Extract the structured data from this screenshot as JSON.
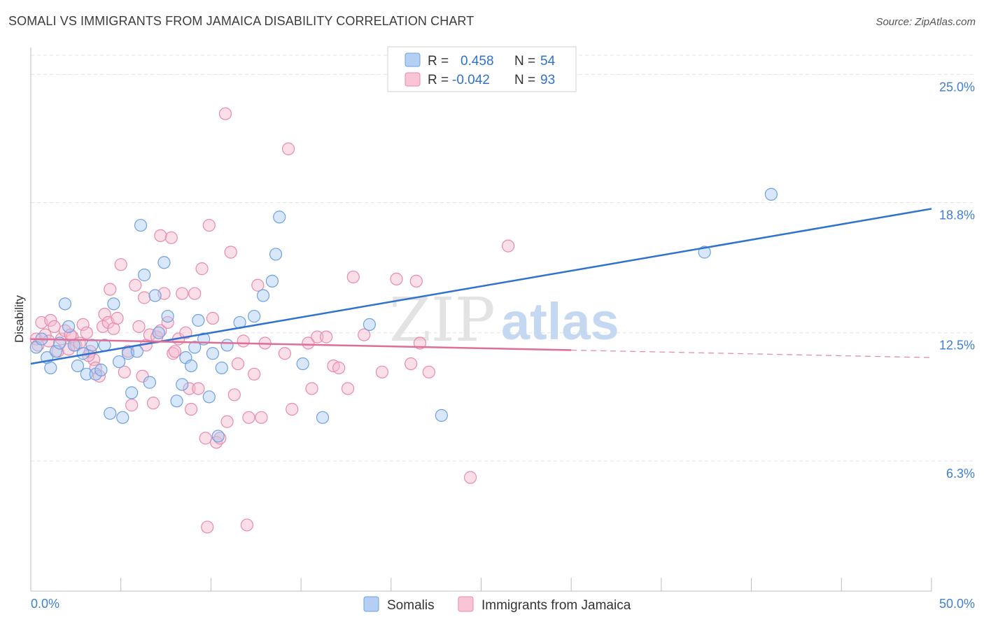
{
  "title": "SOMALI VS IMMIGRANTS FROM JAMAICA DISABILITY CORRELATION CHART",
  "source": "Source: ZipAtlas.com",
  "watermark": {
    "zip": "ZIP",
    "atlas": "atlas"
  },
  "colors": {
    "blue": "#6fa1e0",
    "blue_fill": "#a9c9f2",
    "blue_line": "#2f72d0",
    "pink": "#e98aaa",
    "pink_fill": "#f6b8cc",
    "pink_line": "#e06f97",
    "tick_text": "#3f7fd6",
    "grid": "#dcdcdc"
  },
  "legend": {
    "rows": [
      {
        "r_label": "R =",
        "r_value": "0.458",
        "n_label": "N =",
        "n_value": "54"
      },
      {
        "r_label": "R =",
        "r_value": "-0.042",
        "n_label": "N =",
        "n_value": "93"
      }
    ]
  },
  "chart_data": {
    "type": "scatter",
    "title": "SOMALI VS IMMIGRANTS FROM JAMAICA DISABILITY CORRELATION CHART",
    "xlabel": "",
    "ylabel": "Disability",
    "xlim": [
      0,
      50
    ],
    "ylim": [
      0,
      26.3
    ],
    "x_tick_labels": [
      "0.0%",
      "50.0%"
    ],
    "y_ticks": [
      6.3,
      12.5,
      18.8,
      25.0
    ],
    "y_tick_labels": [
      "6.3%",
      "12.5%",
      "18.8%",
      "25.0%"
    ],
    "legend_position": "bottom",
    "series": [
      {
        "name": "Somalis",
        "r": 0.458,
        "n": 54,
        "trend": {
          "x0": 0,
          "y0": 11.0,
          "x1": 50,
          "y1": 18.5,
          "dashed_from": null
        },
        "points": [
          [
            0.3,
            11.8
          ],
          [
            0.6,
            12.2
          ],
          [
            0.9,
            11.3
          ],
          [
            1.1,
            10.8
          ],
          [
            1.4,
            11.6
          ],
          [
            1.6,
            12.0
          ],
          [
            1.9,
            13.9
          ],
          [
            2.1,
            12.8
          ],
          [
            2.4,
            11.9
          ],
          [
            2.6,
            10.9
          ],
          [
            2.9,
            11.5
          ],
          [
            3.1,
            10.5
          ],
          [
            3.4,
            11.9
          ],
          [
            3.6,
            10.5
          ],
          [
            3.9,
            10.7
          ],
          [
            4.1,
            11.9
          ],
          [
            4.4,
            8.6
          ],
          [
            4.6,
            13.9
          ],
          [
            4.9,
            11.1
          ],
          [
            5.1,
            8.4
          ],
          [
            5.4,
            11.5
          ],
          [
            5.6,
            9.6
          ],
          [
            5.9,
            11.6
          ],
          [
            6.1,
            17.7
          ],
          [
            6.3,
            15.3
          ],
          [
            6.6,
            10.1
          ],
          [
            6.9,
            14.3
          ],
          [
            7.1,
            12.5
          ],
          [
            7.4,
            15.9
          ],
          [
            7.6,
            13.3
          ],
          [
            8.1,
            9.2
          ],
          [
            8.4,
            10.0
          ],
          [
            8.6,
            11.3
          ],
          [
            8.9,
            10.9
          ],
          [
            9.1,
            11.8
          ],
          [
            9.3,
            13.1
          ],
          [
            9.6,
            12.2
          ],
          [
            9.9,
            9.4
          ],
          [
            10.1,
            11.5
          ],
          [
            10.4,
            7.5
          ],
          [
            10.6,
            10.8
          ],
          [
            10.9,
            11.9
          ],
          [
            11.6,
            13.0
          ],
          [
            12.4,
            13.3
          ],
          [
            12.9,
            14.3
          ],
          [
            13.4,
            15.0
          ],
          [
            13.6,
            16.3
          ],
          [
            13.8,
            18.1
          ],
          [
            15.1,
            11.0
          ],
          [
            16.2,
            8.4
          ],
          [
            18.8,
            12.9
          ],
          [
            22.8,
            8.5
          ],
          [
            37.4,
            16.4
          ],
          [
            41.1,
            19.2
          ]
        ]
      },
      {
        "name": "Immigrants from Jamaica",
        "r": -0.042,
        "n": 93,
        "trend": {
          "x0": 0,
          "y0": 12.2,
          "x1": 50,
          "y1": 11.3,
          "dashed_from": 30
        },
        "points": [
          [
            0.3,
            12.2
          ],
          [
            0.4,
            11.9
          ],
          [
            0.6,
            13.0
          ],
          [
            0.8,
            12.4
          ],
          [
            1.0,
            12.1
          ],
          [
            1.1,
            13.1
          ],
          [
            1.3,
            12.8
          ],
          [
            1.5,
            11.6
          ],
          [
            1.7,
            12.2
          ],
          [
            1.9,
            12.6
          ],
          [
            2.1,
            11.7
          ],
          [
            2.3,
            12.3
          ],
          [
            2.5,
            11.9
          ],
          [
            2.7,
            12.0
          ],
          [
            2.9,
            12.9
          ],
          [
            3.1,
            12.5
          ],
          [
            3.3,
            11.6
          ],
          [
            3.5,
            11.2
          ],
          [
            3.6,
            10.8
          ],
          [
            3.8,
            10.4
          ],
          [
            4.0,
            12.8
          ],
          [
            4.1,
            13.4
          ],
          [
            4.3,
            13.0
          ],
          [
            4.4,
            14.6
          ],
          [
            4.6,
            12.7
          ],
          [
            4.8,
            13.2
          ],
          [
            5.0,
            15.8
          ],
          [
            5.2,
            10.6
          ],
          [
            5.4,
            11.6
          ],
          [
            5.6,
            9.0
          ],
          [
            5.8,
            14.8
          ],
          [
            6.0,
            12.8
          ],
          [
            6.2,
            10.4
          ],
          [
            6.4,
            11.9
          ],
          [
            6.6,
            12.4
          ],
          [
            6.8,
            9.1
          ],
          [
            7.0,
            12.3
          ],
          [
            7.2,
            12.6
          ],
          [
            7.4,
            14.4
          ],
          [
            7.6,
            13.0
          ],
          [
            7.8,
            17.1
          ],
          [
            7.9,
            11.5
          ],
          [
            8.0,
            11.6
          ],
          [
            8.2,
            12.2
          ],
          [
            8.4,
            14.4
          ],
          [
            8.6,
            12.5
          ],
          [
            8.8,
            9.8
          ],
          [
            8.9,
            8.8
          ],
          [
            9.1,
            14.4
          ],
          [
            9.3,
            9.8
          ],
          [
            9.5,
            15.6
          ],
          [
            9.7,
            7.4
          ],
          [
            9.9,
            17.7
          ],
          [
            10.1,
            13.2
          ],
          [
            10.3,
            7.2
          ],
          [
            10.5,
            7.4
          ],
          [
            10.8,
            23.1
          ],
          [
            10.9,
            8.2
          ],
          [
            11.1,
            16.4
          ],
          [
            11.3,
            9.5
          ],
          [
            11.5,
            11.0
          ],
          [
            11.8,
            12.1
          ],
          [
            12.1,
            8.4
          ],
          [
            12.4,
            10.5
          ],
          [
            12.6,
            14.8
          ],
          [
            12.8,
            8.4
          ],
          [
            13.0,
            12.0
          ],
          [
            14.1,
            11.5
          ],
          [
            14.3,
            21.4
          ],
          [
            14.5,
            8.8
          ],
          [
            15.4,
            12.0
          ],
          [
            15.6,
            9.8
          ],
          [
            15.9,
            12.3
          ],
          [
            16.4,
            12.3
          ],
          [
            16.8,
            10.9
          ],
          [
            17.1,
            10.8
          ],
          [
            17.6,
            9.8
          ],
          [
            17.9,
            15.2
          ],
          [
            18.5,
            12.4
          ],
          [
            19.5,
            10.6
          ],
          [
            20.3,
            15.1
          ],
          [
            21.1,
            11.0
          ],
          [
            21.4,
            15.0
          ],
          [
            21.6,
            12.0
          ],
          [
            22.1,
            10.6
          ],
          [
            24.4,
            5.5
          ],
          [
            26.5,
            16.7
          ],
          [
            7.2,
            17.2
          ],
          [
            9.8,
            3.1
          ],
          [
            3.2,
            11.4
          ],
          [
            6.3,
            14.2
          ],
          [
            12.0,
            3.2
          ],
          [
            2.2,
            12.4
          ]
        ]
      }
    ]
  }
}
